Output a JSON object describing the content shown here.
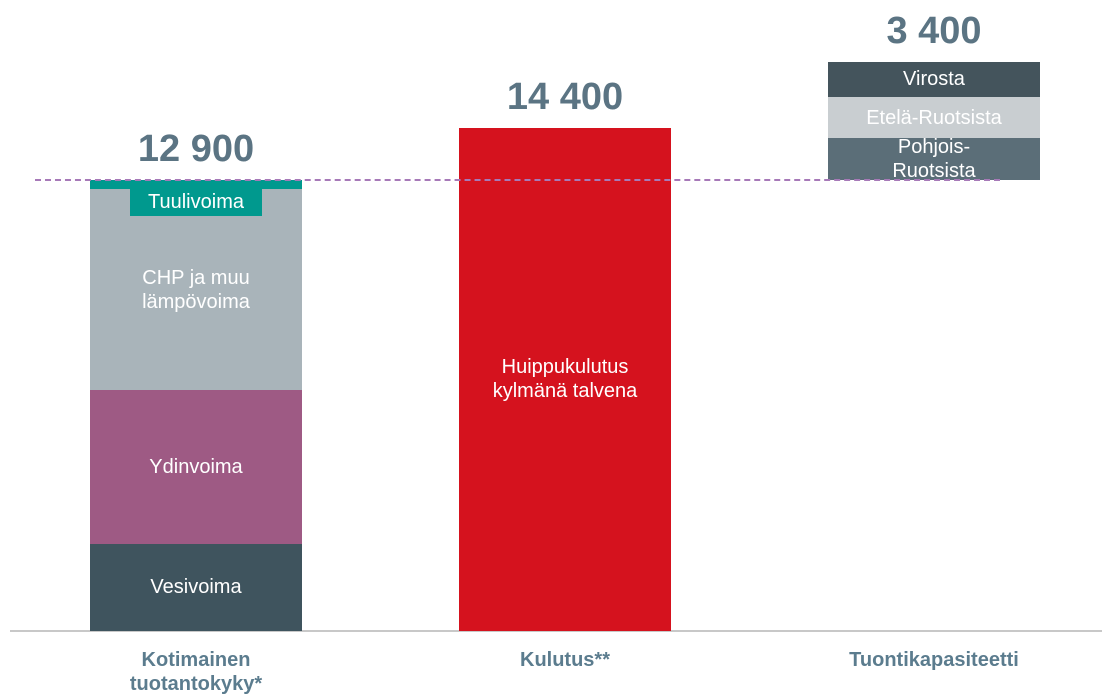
{
  "chart_data": {
    "type": "stacked-bar",
    "categories": [
      "Kotimainen tuotantokyky*",
      "Kulutus**",
      "Tuontikapasiteetti"
    ],
    "series": [
      {
        "name": "Vesivoima",
        "color": "#3f545e",
        "values": [
          2500,
          null,
          null
        ]
      },
      {
        "name": "Ydinvoima",
        "color": "#9e5a84",
        "values": [
          4400,
          null,
          null
        ]
      },
      {
        "name": "CHP ja muu lämpövoima",
        "color": "#a9b4ba",
        "values": [
          5750,
          null,
          null
        ]
      },
      {
        "name": "Tuulivoima",
        "color": "#00998e",
        "values": [
          250,
          null,
          null
        ]
      },
      {
        "name": "Huippukulutus kylmänä talvena",
        "color": "#d5121e",
        "values": [
          null,
          14400,
          null
        ]
      },
      {
        "name": "Pohjois-Ruotsista",
        "color": "#5b6e78",
        "values": [
          null,
          null,
          1200
        ]
      },
      {
        "name": "Etelä-Ruotsista",
        "color": "#c9ced1",
        "values": [
          null,
          null,
          1200
        ]
      },
      {
        "name": "Virosta",
        "color": "#44545c",
        "values": [
          null,
          null,
          1000
        ]
      }
    ],
    "totals": {
      "values": [
        12900,
        14400,
        3400
      ],
      "value_labels": [
        "12 900",
        "14 400",
        "3 400"
      ]
    }
  }
}
